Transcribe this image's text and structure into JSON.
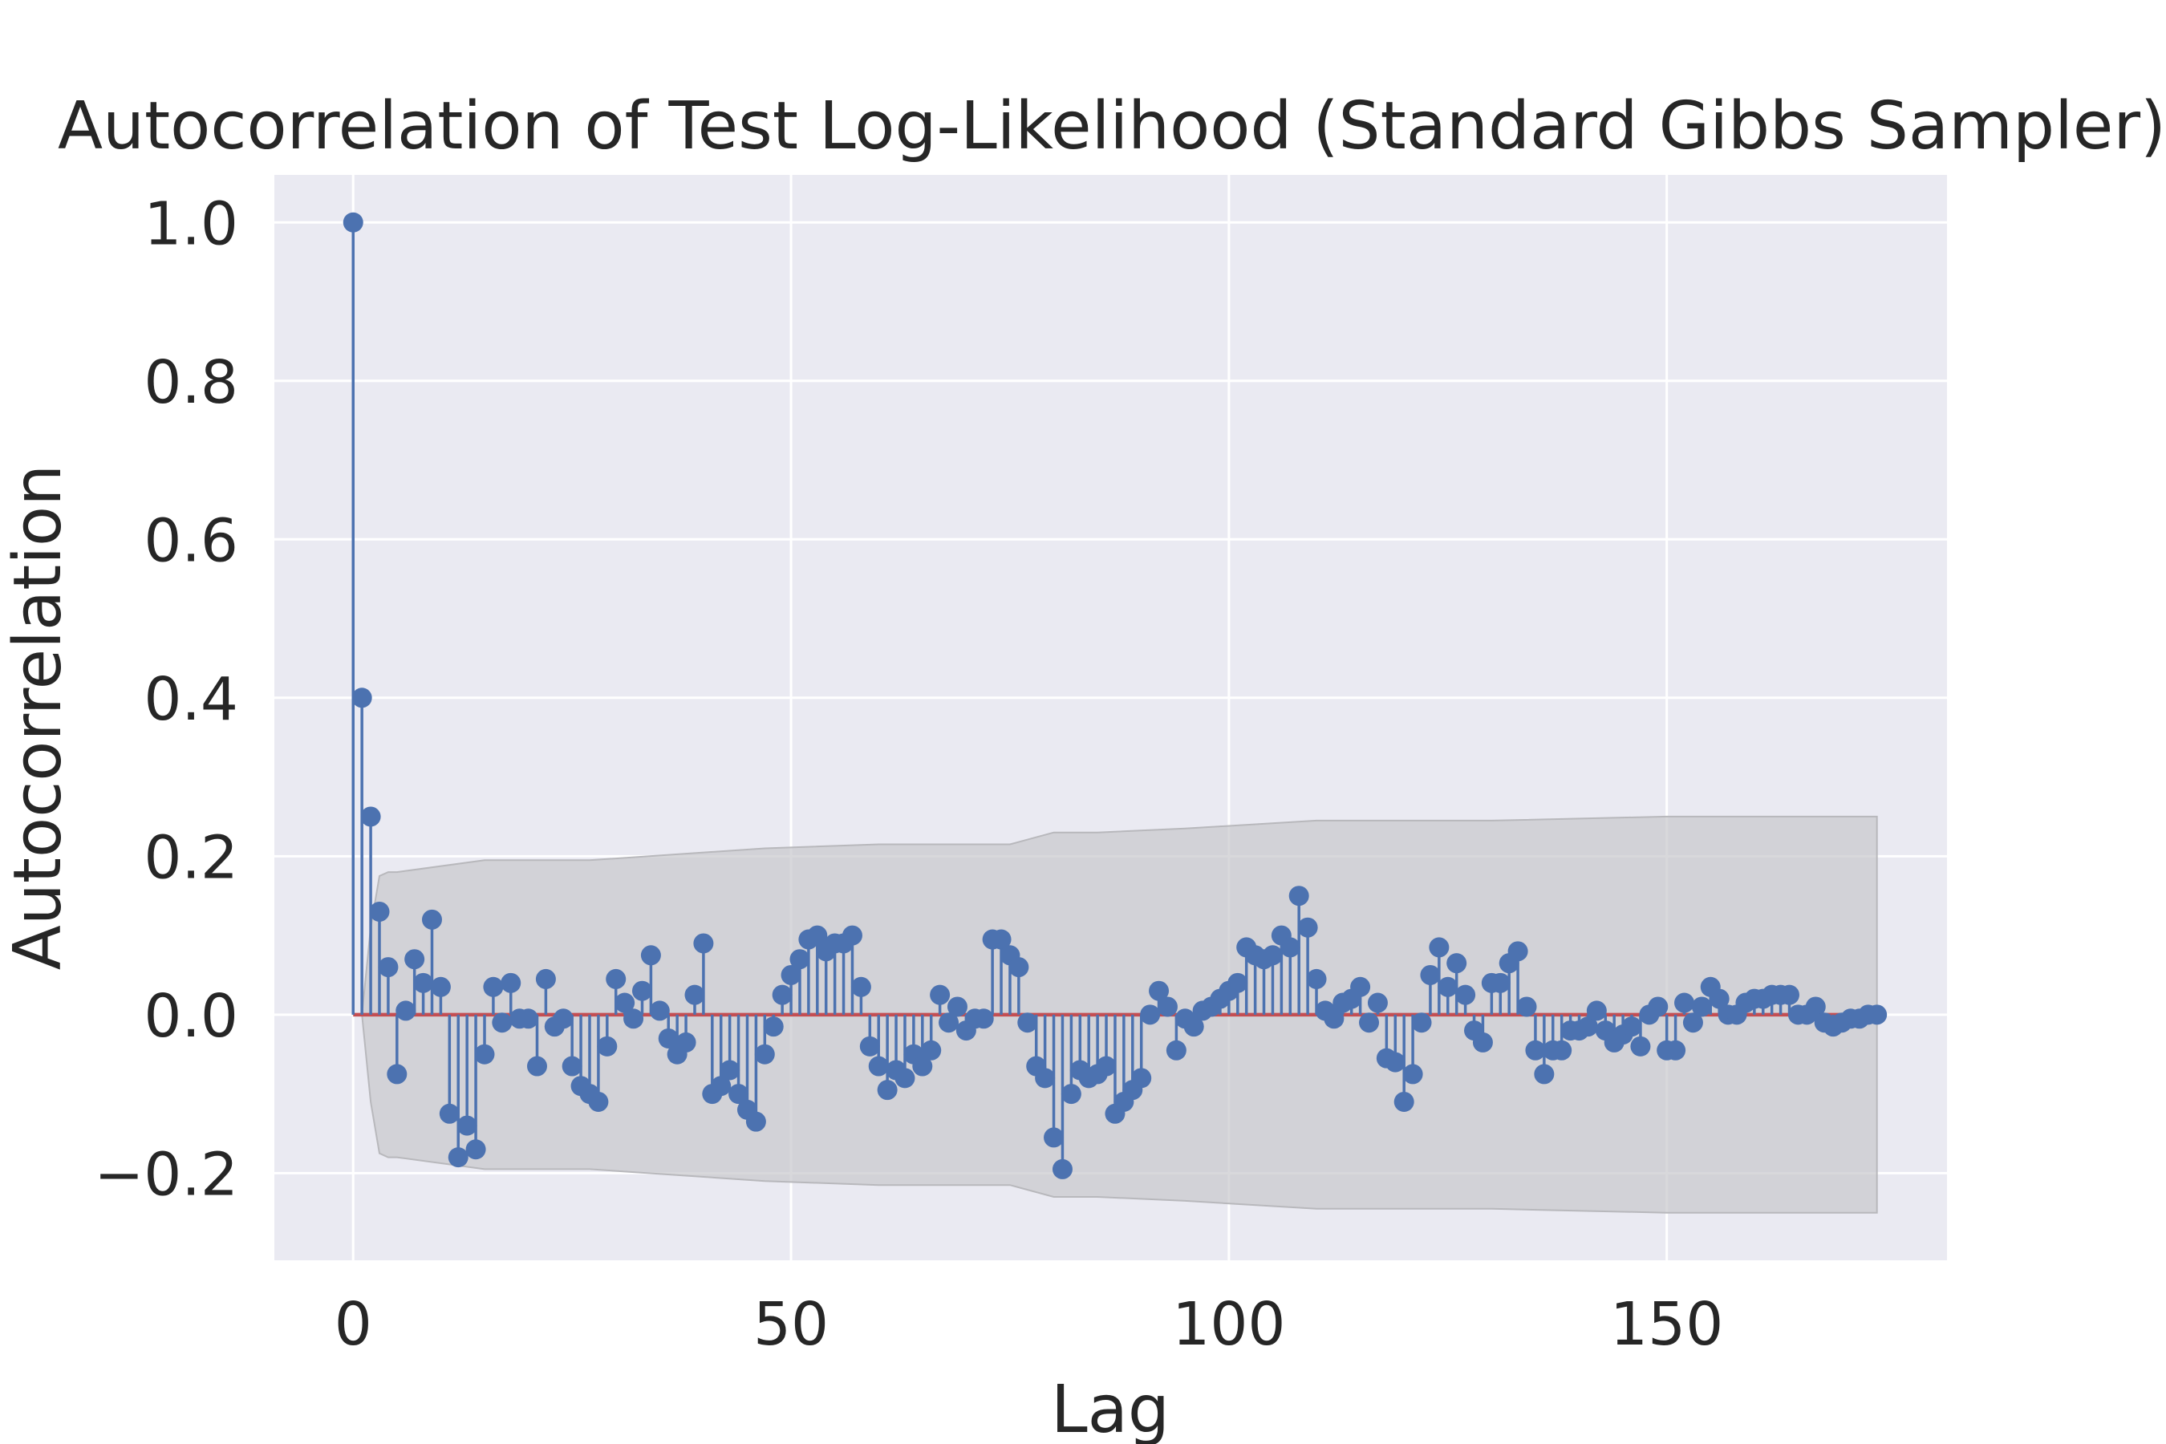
{
  "chart_data": {
    "type": "stem",
    "title": "Autocorrelation of Test Log-Likelihood (Standard Gibbs Sampler)",
    "xlabel": "Lag",
    "ylabel": "Autocorrelation",
    "xlim": [
      -9,
      182
    ],
    "ylim": [
      -0.31,
      1.06
    ],
    "xticks": [
      0,
      50,
      100,
      150
    ],
    "yticks": [
      -0.2,
      0.0,
      0.2,
      0.4,
      0.6,
      0.8,
      1.0
    ],
    "ytick_labels": [
      "−0.2",
      "0.0",
      "0.2",
      "0.4",
      "0.6",
      "0.8",
      "1.0"
    ],
    "grid": true,
    "lags": [
      0,
      1,
      2,
      3,
      4,
      5,
      6,
      7,
      8,
      9,
      10,
      11,
      12,
      13,
      14,
      15,
      16,
      17,
      18,
      19,
      20,
      21,
      22,
      23,
      24,
      25,
      26,
      27,
      28,
      29,
      30,
      31,
      32,
      33,
      34,
      35,
      36,
      37,
      38,
      39,
      40,
      41,
      42,
      43,
      44,
      45,
      46,
      47,
      48,
      49,
      50,
      51,
      52,
      53,
      54,
      55,
      56,
      57,
      58,
      59,
      60,
      61,
      62,
      63,
      64,
      65,
      66,
      67,
      68,
      69,
      70,
      71,
      72,
      73,
      74,
      75,
      76,
      77,
      78,
      79,
      80,
      81,
      82,
      83,
      84,
      85,
      86,
      87,
      88,
      89,
      90,
      91,
      92,
      93,
      94,
      95,
      96,
      97,
      98,
      99,
      100,
      101,
      102,
      103,
      104,
      105,
      106,
      107,
      108,
      109,
      110,
      111,
      112,
      113,
      114,
      115,
      116,
      117,
      118,
      119,
      120,
      121,
      122,
      123,
      124,
      125,
      126,
      127,
      128,
      129,
      130,
      131,
      132,
      133,
      134,
      135,
      136,
      137,
      138,
      139,
      140,
      141,
      142,
      143,
      144,
      145,
      146,
      147,
      148,
      149,
      150,
      151,
      152,
      153,
      154,
      155,
      156,
      157,
      158,
      159,
      160,
      161,
      162,
      163,
      164,
      165,
      166,
      167,
      168,
      169,
      170,
      171,
      172,
      173,
      174
    ],
    "acf": [
      1.0,
      0.4,
      0.25,
      0.13,
      0.06,
      -0.075,
      0.005,
      0.07,
      0.04,
      0.12,
      0.035,
      -0.125,
      -0.18,
      -0.14,
      -0.17,
      -0.05,
      0.035,
      -0.01,
      0.04,
      -0.005,
      -0.005,
      -0.065,
      0.045,
      -0.015,
      -0.005,
      -0.065,
      -0.09,
      -0.1,
      -0.11,
      -0.04,
      0.045,
      0.015,
      -0.005,
      0.03,
      0.075,
      0.005,
      -0.03,
      -0.05,
      -0.035,
      0.025,
      0.09,
      -0.1,
      -0.09,
      -0.07,
      -0.1,
      -0.12,
      -0.135,
      -0.05,
      -0.015,
      0.025,
      0.05,
      0.07,
      0.095,
      0.1,
      0.08,
      0.09,
      0.09,
      0.1,
      0.035,
      -0.04,
      -0.065,
      -0.095,
      -0.07,
      -0.08,
      -0.05,
      -0.065,
      -0.045,
      0.025,
      -0.01,
      0.01,
      -0.02,
      -0.005,
      -0.005,
      0.095,
      0.095,
      0.075,
      0.06,
      -0.01,
      -0.065,
      -0.08,
      -0.155,
      -0.195,
      -0.1,
      -0.07,
      -0.08,
      -0.075,
      -0.065,
      -0.125,
      -0.11,
      -0.095,
      -0.08,
      0.0,
      0.03,
      0.01,
      -0.045,
      -0.005,
      -0.015,
      0.005,
      0.01,
      0.02,
      0.03,
      0.04,
      0.085,
      0.075,
      0.07,
      0.075,
      0.1,
      0.085,
      0.15,
      0.11,
      0.045,
      0.005,
      -0.005,
      0.015,
      0.02,
      0.035,
      -0.01,
      0.015,
      -0.055,
      -0.06,
      -0.11,
      -0.075,
      -0.01,
      0.05,
      0.085,
      0.035,
      0.065,
      0.025,
      -0.02,
      -0.035,
      0.04,
      0.04,
      0.065,
      0.08,
      0.01,
      -0.045,
      -0.075,
      -0.045,
      -0.045,
      -0.02,
      -0.02,
      -0.015,
      0.005,
      -0.02,
      -0.035,
      -0.025,
      -0.015,
      -0.04,
      0.0,
      0.01,
      -0.045,
      -0.045,
      0.015,
      -0.01,
      0.01,
      0.035,
      0.02,
      0.0,
      0.0,
      0.015,
      0.02,
      0.02,
      0.025,
      0.025,
      0.025,
      0.0,
      0.0,
      0.01,
      -0.01,
      -0.015,
      -0.01,
      -0.005,
      -0.005,
      0.0,
      0.0
    ],
    "conf_band": {
      "lags": [
        1,
        2,
        3,
        4,
        5,
        15,
        20,
        27,
        47,
        60,
        75,
        80,
        85,
        95,
        110,
        130,
        150,
        174
      ],
      "upper": [
        0.0,
        0.11,
        0.175,
        0.18,
        0.18,
        0.195,
        0.195,
        0.195,
        0.21,
        0.215,
        0.215,
        0.23,
        0.23,
        0.235,
        0.245,
        0.245,
        0.25,
        0.25
      ],
      "lower": [
        0.0,
        -0.11,
        -0.175,
        -0.18,
        -0.18,
        -0.195,
        -0.195,
        -0.195,
        -0.21,
        -0.215,
        -0.215,
        -0.23,
        -0.23,
        -0.235,
        -0.245,
        -0.245,
        -0.25,
        -0.25
      ]
    },
    "colors": {
      "background": "#eaeaf2",
      "grid": "#ffffff",
      "stem": "#4c72b0",
      "baseline": "#c44e52",
      "band": "#c8c8cc",
      "text": "#262626"
    }
  }
}
